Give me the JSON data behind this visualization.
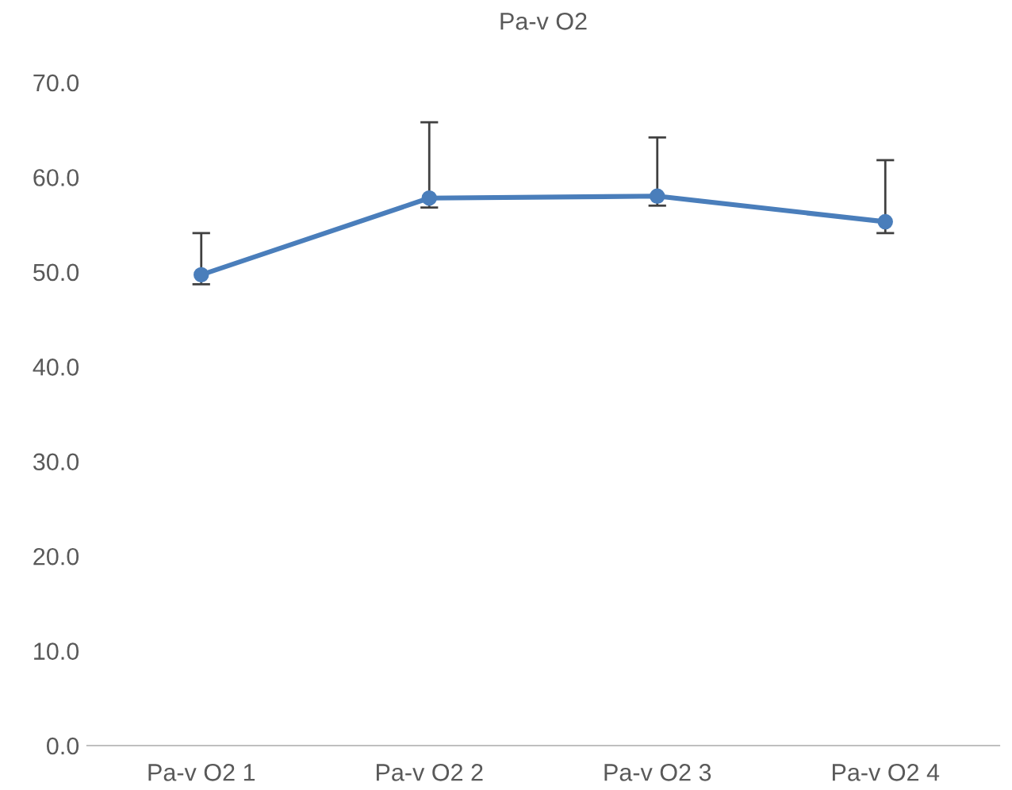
{
  "chart_data": {
    "type": "line",
    "title": "Pa-v O2",
    "categories": [
      "Pa-v O2 1",
      "Pa-v O2 2",
      "Pa-v O2 3",
      "Pa-v O2 4"
    ],
    "series": [
      {
        "color": "#4a7ebb",
        "values": [
          49.7,
          57.8,
          58.0,
          55.3
        ],
        "errors": [
          [
            48.7,
            54.1
          ],
          [
            56.8,
            65.8
          ],
          [
            57.0,
            64.2
          ],
          [
            54.1,
            61.8
          ]
        ]
      }
    ],
    "ylim": [
      0,
      70
    ],
    "yticks": [
      {
        "value": 0,
        "label": "0.0"
      },
      {
        "value": 10,
        "label": "10.0"
      },
      {
        "value": 20,
        "label": "20.0"
      },
      {
        "value": 30,
        "label": "30.0"
      },
      {
        "value": 40,
        "label": "40.0"
      },
      {
        "value": 50,
        "label": "50.0"
      },
      {
        "value": 60,
        "label": "60.0"
      },
      {
        "value": 70,
        "label": "70.0"
      }
    ],
    "grid": false,
    "marker": "circle",
    "line_style": "solid"
  }
}
